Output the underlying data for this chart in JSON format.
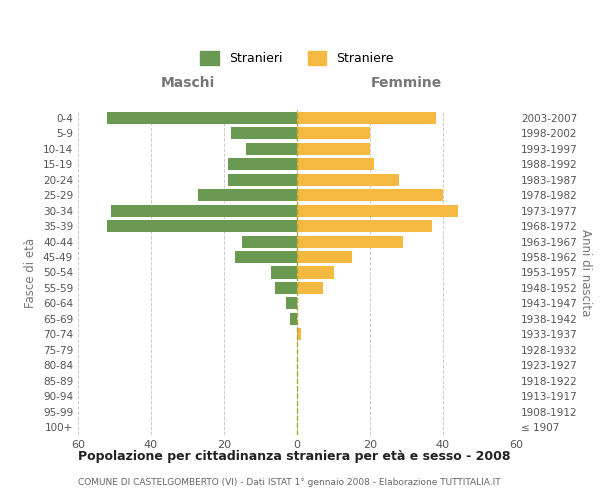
{
  "age_groups": [
    "100+",
    "95-99",
    "90-94",
    "85-89",
    "80-84",
    "75-79",
    "70-74",
    "65-69",
    "60-64",
    "55-59",
    "50-54",
    "45-49",
    "40-44",
    "35-39",
    "30-34",
    "25-29",
    "20-24",
    "15-19",
    "10-14",
    "5-9",
    "0-4"
  ],
  "birth_years": [
    "≤ 1907",
    "1908-1912",
    "1913-1917",
    "1918-1922",
    "1923-1927",
    "1928-1932",
    "1933-1937",
    "1938-1942",
    "1943-1947",
    "1948-1952",
    "1953-1957",
    "1958-1962",
    "1963-1967",
    "1968-1972",
    "1973-1977",
    "1978-1982",
    "1983-1987",
    "1988-1992",
    "1993-1997",
    "1998-2002",
    "2003-2007"
  ],
  "maschi": [
    0,
    0,
    0,
    0,
    0,
    0,
    0,
    2,
    3,
    6,
    7,
    17,
    15,
    52,
    51,
    27,
    19,
    19,
    14,
    18,
    52
  ],
  "femmine": [
    0,
    0,
    0,
    0,
    0,
    0,
    1,
    0,
    0,
    7,
    10,
    15,
    29,
    37,
    44,
    40,
    28,
    21,
    20,
    20,
    38
  ],
  "male_color": "#6a9a52",
  "female_color": "#f5b942",
  "title": "Popolazione per cittadinanza straniera per età e sesso - 2008",
  "subtitle": "COMUNE DI CASTELGOMBERTO (VI) - Dati ISTAT 1° gennaio 2008 - Elaborazione TUTTITALIA.IT",
  "xlabel_left": "Maschi",
  "xlabel_right": "Femmine",
  "ylabel_left": "Fasce di età",
  "ylabel_right": "Anni di nascita",
  "legend_male": "Stranieri",
  "legend_female": "Straniere",
  "xlim": 60,
  "background_color": "#ffffff",
  "grid_color": "#cccccc"
}
